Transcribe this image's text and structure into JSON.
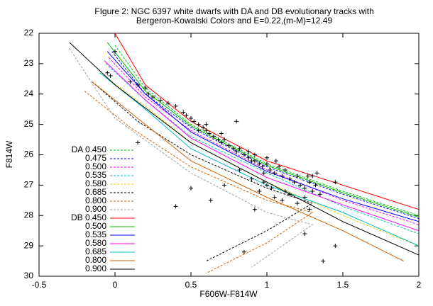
{
  "chart_data": {
    "type": "line",
    "title": [
      "FIgure 2: NGC 6397 white dwarfs with DA and DB evolutionary tracks with",
      "Bergeron-Kowalski Colors and E=0.22,(m-M)=12.49"
    ],
    "x_label": "F606W-F814W",
    "y_label": "F814W",
    "xlim": [
      -0.5,
      2
    ],
    "ylim": [
      30,
      22
    ],
    "xticks": [
      -0.5,
      0,
      0.5,
      1,
      1.5,
      2
    ],
    "yticks": [
      22,
      23,
      24,
      25,
      26,
      27,
      28,
      29,
      30
    ],
    "legend": "left",
    "series": [
      {
        "name": "DA 0.450",
        "color": "#00c000",
        "dashed": true,
        "x": [
          0.0,
          0.2,
          0.5,
          1.0,
          1.5,
          2.0
        ],
        "values": [
          22.4,
          23.8,
          25.0,
          26.3,
          27.2,
          28.0
        ]
      },
      {
        "name": "0.475",
        "color": "#0000ff",
        "dashed": true,
        "x": [
          -0.02,
          0.2,
          0.5,
          1.0,
          1.5,
          2.0
        ],
        "values": [
          22.6,
          24.0,
          25.1,
          26.4,
          27.3,
          28.1
        ]
      },
      {
        "name": "0.500",
        "color": "#ff00ff",
        "dashed": true,
        "x": [
          -0.04,
          0.2,
          0.5,
          1.0,
          1.5,
          2.0
        ],
        "values": [
          22.8,
          24.1,
          25.2,
          26.5,
          27.5,
          28.3
        ]
      },
      {
        "name": "0.535",
        "color": "#00c0c0",
        "dashed": true,
        "x": [
          -0.06,
          0.2,
          0.5,
          1.0,
          1.5,
          2.0
        ],
        "values": [
          23.0,
          24.2,
          25.4,
          26.6,
          27.7,
          28.6
        ]
      },
      {
        "name": "0.580",
        "color": "#e0d000",
        "dashed": true,
        "x": [
          -0.1,
          0.2,
          0.5,
          1.0,
          1.5,
          2.0
        ],
        "values": [
          23.3,
          24.4,
          25.6,
          26.9,
          28.0,
          29.0
        ]
      },
      {
        "name": "0.685",
        "color": "#000000",
        "dashed": true,
        "x": [
          -0.15,
          0.15,
          0.5,
          1.0,
          1.3,
          1.0,
          0.6
        ],
        "values": [
          23.6,
          24.9,
          26.0,
          27.1,
          27.6,
          28.5,
          29.5
        ]
      },
      {
        "name": "0.800",
        "color": "#d06000",
        "dashed": true,
        "x": [
          -0.2,
          0.1,
          0.5,
          1.0,
          1.3,
          1.0,
          0.6
        ],
        "values": [
          23.9,
          25.1,
          26.4,
          27.5,
          27.9,
          28.9,
          29.9
        ]
      },
      {
        "name": "0.900",
        "color": "#a0a0a0",
        "dashed": true,
        "x": [
          -0.3,
          0.0,
          0.5,
          1.0,
          1.3,
          0.9
        ],
        "values": [
          22.5,
          24.8,
          26.6,
          27.9,
          28.3,
          29.7
        ]
      },
      {
        "name": "DB 0.450",
        "color": "#ff0000",
        "dashed": false,
        "x": [
          0.0,
          0.2,
          0.5,
          1.0,
          1.5,
          2.0
        ],
        "values": [
          22.0,
          23.7,
          24.9,
          26.2,
          27.0,
          27.8
        ]
      },
      {
        "name": "0.500",
        "color": "#00c000",
        "dashed": false,
        "x": [
          -0.05,
          0.2,
          0.5,
          1.0,
          1.5,
          2.0
        ],
        "values": [
          22.3,
          23.9,
          25.05,
          26.35,
          27.25,
          28.05
        ]
      },
      {
        "name": "0.535",
        "color": "#0000ff",
        "dashed": false,
        "x": [
          -0.05,
          0.2,
          0.5,
          1.0,
          1.5,
          2.0
        ],
        "values": [
          22.6,
          24.0,
          25.25,
          26.55,
          27.45,
          28.2
        ]
      },
      {
        "name": "0.580",
        "color": "#ff00ff",
        "dashed": false,
        "x": [
          -0.07,
          0.2,
          0.5,
          1.0,
          1.5,
          2.0
        ],
        "values": [
          22.9,
          24.2,
          25.45,
          26.75,
          27.65,
          28.5
        ]
      },
      {
        "name": "0.685",
        "color": "#00c0c0",
        "dashed": false,
        "x": [
          -0.1,
          0.2,
          0.5,
          1.0,
          1.5,
          2.0
        ],
        "values": [
          23.3,
          24.5,
          25.8,
          27.0,
          27.9,
          29.0
        ]
      },
      {
        "name": "0.800",
        "color": "#d06000",
        "dashed": false,
        "x": [
          -0.15,
          0.15,
          0.5,
          1.0,
          1.5,
          1.9
        ],
        "values": [
          23.6,
          24.8,
          26.2,
          27.4,
          28.5,
          29.5
        ]
      },
      {
        "name": "0.900",
        "color": "#000000",
        "dashed": false,
        "x": [
          -0.3,
          0.0,
          0.5,
          1.0,
          1.5,
          2.0
        ],
        "values": [
          22.3,
          23.7,
          25.6,
          26.9,
          28.2,
          29.3
        ]
      }
    ],
    "points": {
      "color": "#000000",
      "x": [
        0.0,
        -0.05,
        -0.03,
        0.1,
        0.15,
        0.2,
        0.22,
        0.25,
        0.3,
        0.35,
        0.4,
        0.45,
        0.47,
        0.5,
        0.52,
        0.55,
        0.58,
        0.6,
        0.62,
        0.65,
        0.68,
        0.7,
        0.72,
        0.75,
        0.78,
        0.8,
        0.82,
        0.85,
        0.88,
        0.9,
        0.92,
        0.95,
        0.97,
        1.0,
        1.02,
        1.05,
        1.08,
        1.1,
        1.12,
        1.15,
        1.18,
        1.2,
        1.22,
        1.25,
        1.28,
        1.3,
        1.32,
        1.35,
        1.0,
        0.95,
        1.05,
        1.1,
        1.15,
        1.2,
        1.25,
        1.28,
        0.9,
        0.98,
        1.03,
        1.12,
        0.8,
        0.82,
        0.15,
        0.5,
        0.4,
        0.63,
        0.72,
        0.92,
        0.85,
        1.25,
        1.37,
        1.45,
        1.45,
        1.3,
        1.33,
        1.27,
        1.0,
        0.98,
        1.06,
        0.7,
        0.55,
        0.6,
        0.88,
        0.92
      ],
      "y": [
        22.6,
        23.3,
        23.4,
        23.6,
        23.7,
        23.8,
        24.0,
        24.1,
        24.2,
        24.3,
        24.4,
        24.6,
        24.7,
        24.8,
        24.9,
        25.0,
        25.1,
        25.2,
        25.3,
        25.4,
        25.5,
        25.6,
        25.5,
        25.7,
        25.8,
        25.9,
        25.8,
        26.0,
        26.1,
        26.2,
        26.0,
        26.3,
        26.4,
        26.3,
        26.5,
        26.6,
        26.4,
        26.7,
        26.5,
        26.8,
        26.9,
        26.7,
        27.0,
        27.1,
        26.9,
        27.2,
        27.0,
        27.3,
        27.0,
        27.2,
        27.4,
        27.5,
        27.3,
        27.6,
        27.4,
        27.8,
        26.8,
        26.9,
        27.1,
        27.2,
        24.9,
        26.5,
        25.6,
        27.1,
        27.7,
        27.5,
        27.0,
        27.8,
        29.2,
        28.6,
        29.5,
        29.0,
        26.9,
        26.7,
        26.6,
        26.7,
        26.1,
        26.6,
        26.2,
        25.3,
        25.2,
        25.0,
        25.9,
        26.2
      ]
    }
  }
}
